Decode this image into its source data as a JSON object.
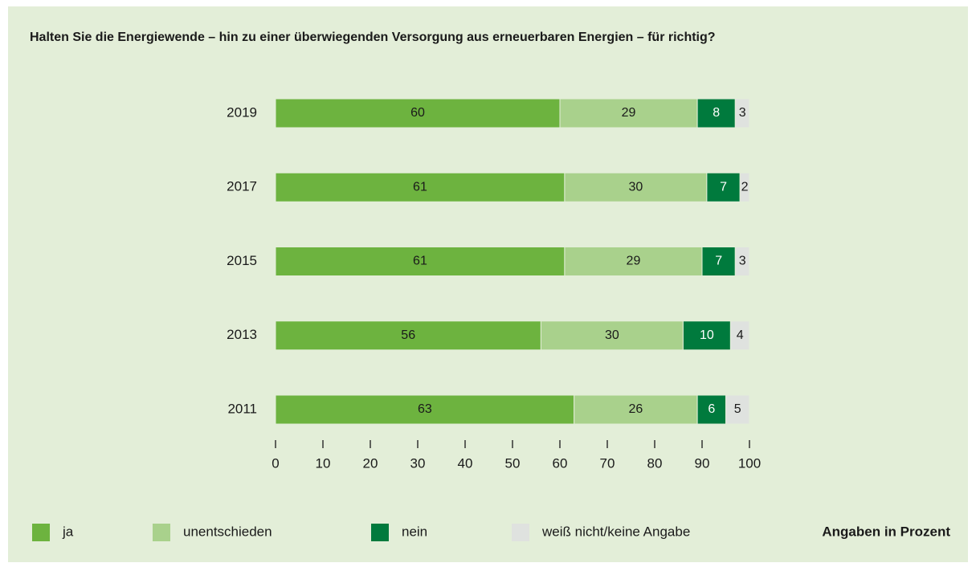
{
  "chart_data": {
    "type": "stacked_barh",
    "title": "Halten Sie die Energiewende – hin zu einer überwiegenden Versorgung aus erneuerbaren Energien – für richtig?",
    "categories": [
      "2019",
      "2017",
      "2015",
      "2013",
      "2011"
    ],
    "series": [
      {
        "name": "ja",
        "color": "#6db33f",
        "values": [
          60,
          61,
          61,
          56,
          63
        ]
      },
      {
        "name": "unentschieden",
        "color": "#a9d18c",
        "values": [
          29,
          30,
          29,
          30,
          26
        ]
      },
      {
        "name": "nein",
        "color": "#007a3d",
        "values": [
          8,
          7,
          7,
          10,
          6
        ]
      },
      {
        "name": "weiß nicht/keine Angabe",
        "color": "#dfe2df",
        "values": [
          3,
          2,
          3,
          4,
          5
        ]
      }
    ],
    "xlim": [
      0,
      100
    ],
    "xticks": [
      0,
      10,
      20,
      30,
      40,
      50,
      60,
      70,
      80,
      90,
      100
    ],
    "legend": "bottom",
    "note": "Angaben in Prozent"
  }
}
